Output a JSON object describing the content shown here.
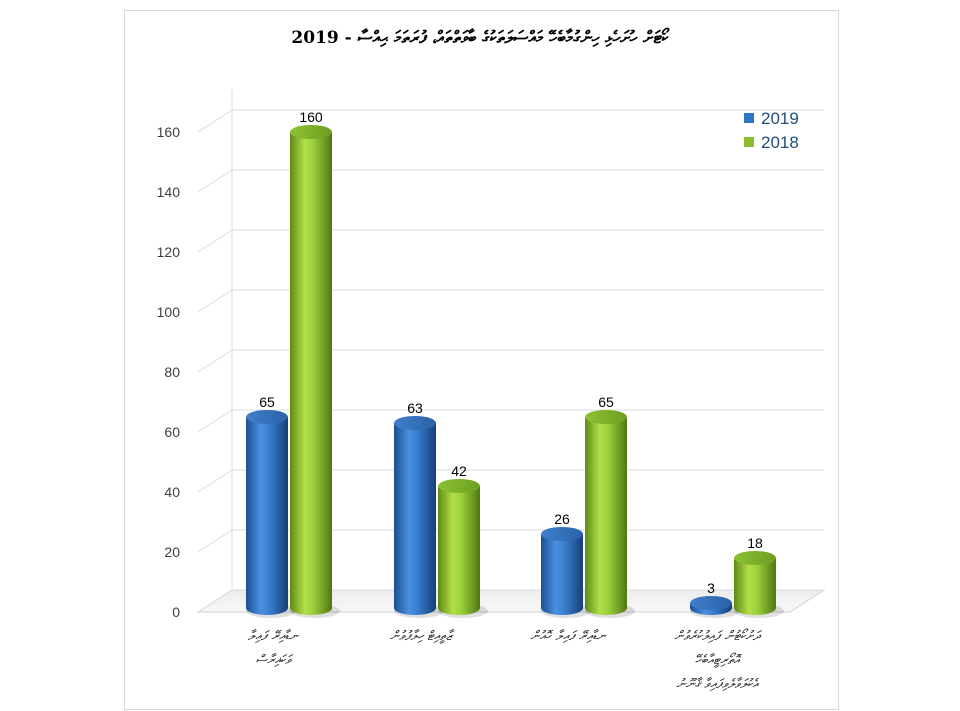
{
  "chart_data": {
    "type": "bar",
    "title": "ކޯޓަށް ހުށަހެޅި ހިންގުމާބެހޭ މައްސަލަތަކުގެ ބާވަތްތައް، ފުރަތަމަ ޙިއްސާ - 2019",
    "categories": [
      [
        "ނޑާއިރޭ ފައިލާ",
        "ވަކަޣިރާސް"
      ],
      [
        "ޒާތީއިޓް ހިލާފުވުން"
      ],
      [
        "ނޑާއިރޭ ފައިލާ ހޮއުން"
      ],
      [
        "ދަށުކޯޓުން ފައިލުކުރެވުން",
        "އޮތޯރިޓީއާބެހޭ",
        "އެކުލަވާލެވިފައިވާ ޤާނޫނު"
      ]
    ],
    "series": [
      {
        "name": "2019",
        "values": [
          65,
          63,
          26,
          3
        ],
        "color": "#2e75c7"
      },
      {
        "name": "2018",
        "values": [
          160,
          42,
          65,
          18
        ],
        "color": "#8cbd2e"
      }
    ],
    "ylim": [
      0,
      160
    ],
    "yticks": [
      0,
      20,
      40,
      60,
      80,
      100,
      120,
      140,
      160
    ],
    "grid": true,
    "legend": "top-right"
  }
}
